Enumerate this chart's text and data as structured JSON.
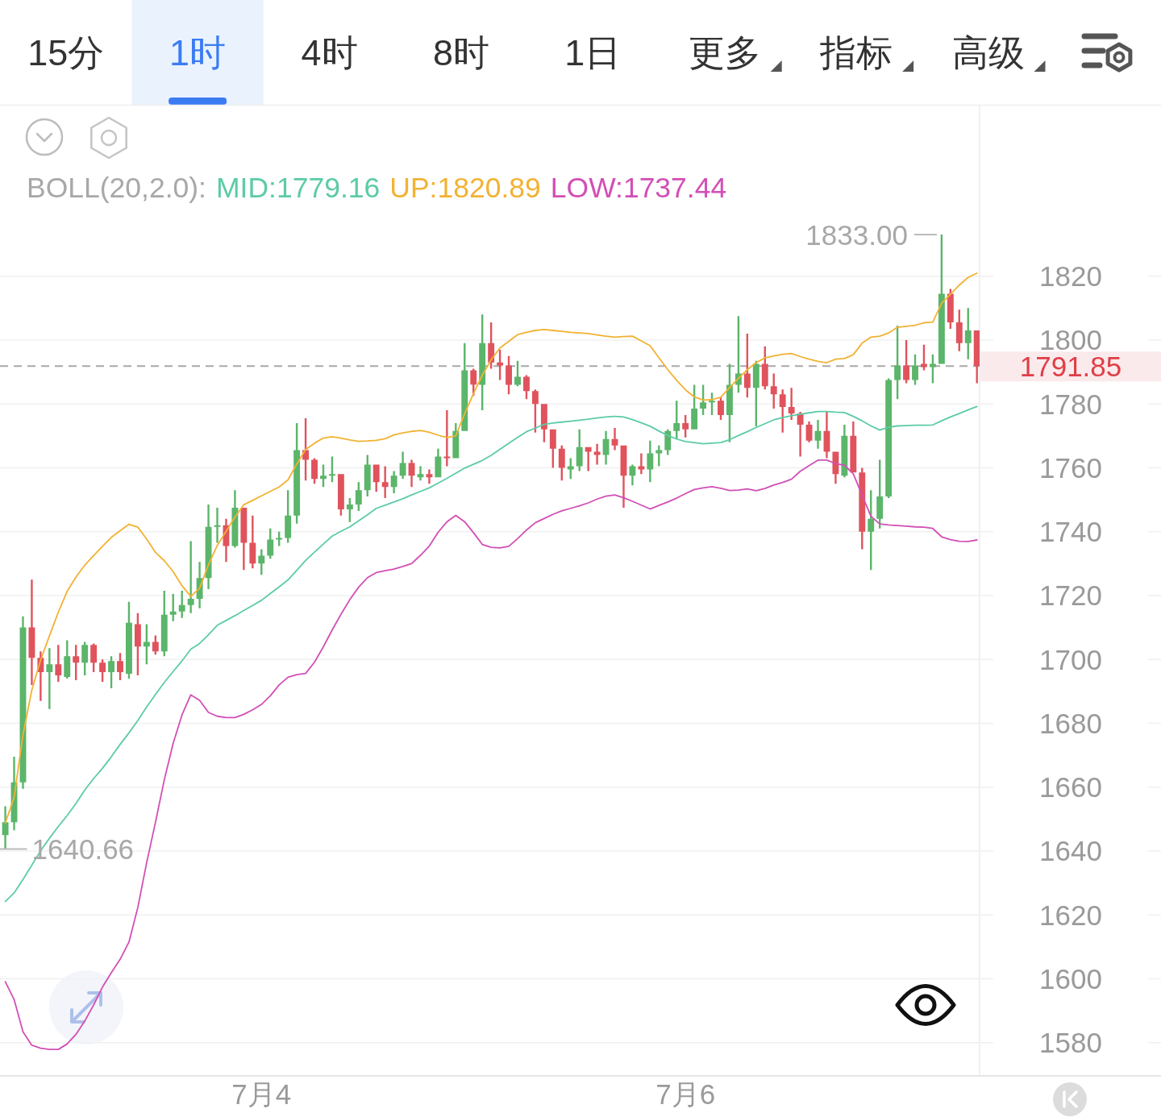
{
  "chart_data": [
    {
      "type": "other",
      "annotations": [
        "15分",
        "1时",
        "4时",
        "8时",
        "1日",
        "更多",
        "指标",
        "高级"
      ]
    },
    {
      "type": "candlestick",
      "legend_title": "BOLL(20,2.0):",
      "legend": "top left",
      "grid": "y",
      "ylim": [
        1569.6,
        1873.4
      ],
      "yticks": [
        1580,
        1600,
        1620,
        1640,
        1660,
        1680,
        1700,
        1720,
        1740,
        1760,
        1780,
        1800,
        1820
      ],
      "categories": [
        null,
        null,
        null,
        null,
        null,
        null,
        null,
        null,
        null,
        null,
        null,
        null,
        null,
        null,
        null,
        null,
        null,
        null,
        null,
        null,
        null,
        null,
        null,
        null,
        null,
        null,
        null,
        null,
        null,
        "7月4",
        null,
        null,
        null,
        null,
        null,
        null,
        null,
        null,
        null,
        null,
        null,
        null,
        null,
        null,
        null,
        null,
        null,
        null,
        null,
        null,
        null,
        null,
        null,
        null,
        null,
        null,
        null,
        null,
        null,
        null,
        null,
        null,
        null,
        null,
        null,
        null,
        null,
        null,
        null,
        null,
        null,
        null,
        null,
        null,
        null,
        null,
        null,
        "7月6",
        null,
        null,
        null,
        null,
        null,
        null,
        null,
        null,
        null,
        null,
        null,
        null,
        null,
        null,
        null,
        null,
        null,
        null,
        null,
        null,
        null,
        null,
        null,
        null,
        null,
        null,
        null,
        null,
        null,
        null,
        null,
        null,
        null
      ],
      "ohlc": [
        [
          1645,
          1654,
          1640.66,
          1649
        ],
        [
          1649,
          1669.5,
          1646.5,
          1661.5
        ],
        [
          1661.5,
          1713.5,
          1659.5,
          1710
        ],
        [
          1710,
          1725,
          1692,
          1700.5
        ],
        [
          1700.5,
          1702.5,
          1687,
          1696
        ],
        [
          1696,
          1703.5,
          1684.5,
          1698.5
        ],
        [
          1698.5,
          1704.5,
          1693,
          1695
        ],
        [
          1694.5,
          1706,
          1694,
          1701
        ],
        [
          1701,
          1704.5,
          1693.5,
          1699
        ],
        [
          1699,
          1705.5,
          1695,
          1704.5
        ],
        [
          1704.5,
          1705,
          1696,
          1699
        ],
        [
          1699,
          1700,
          1693,
          1696
        ],
        [
          1696,
          1701,
          1691,
          1699.5
        ],
        [
          1699.5,
          1702,
          1693.5,
          1696
        ],
        [
          1695.5,
          1718,
          1694,
          1711.5
        ],
        [
          1711,
          1714.5,
          1695,
          1704
        ],
        [
          1704,
          1711,
          1698.5,
          1705.5
        ],
        [
          1705.5,
          1707.5,
          1701.5,
          1702.5
        ],
        [
          1702.5,
          1721.5,
          1701,
          1714
        ],
        [
          1714,
          1720.5,
          1712,
          1715
        ],
        [
          1715,
          1721.5,
          1713,
          1717
        ],
        [
          1717,
          1737,
          1714.5,
          1719
        ],
        [
          1719,
          1730.5,
          1716,
          1725.5
        ],
        [
          1725.5,
          1748.5,
          1722,
          1741.5
        ],
        [
          1741.5,
          1747.5,
          1736.5,
          1742
        ],
        [
          1742,
          1744,
          1730.5,
          1735.5
        ],
        [
          1735.5,
          1753,
          1735,
          1747.5
        ],
        [
          1747.5,
          1747.5,
          1728,
          1736.5
        ],
        [
          1736.5,
          1745,
          1728.5,
          1730
        ],
        [
          1730,
          1734.5,
          1726.5,
          1732.5
        ],
        [
          1732.5,
          1741,
          1731.5,
          1737.5
        ],
        [
          1737.5,
          1740,
          1735.5,
          1738
        ],
        [
          1738,
          1753,
          1736.5,
          1745
        ],
        [
          1745,
          1774,
          1742.5,
          1765.5
        ],
        [
          1765.5,
          1775.5,
          1756,
          1762.5
        ],
        [
          1762.5,
          1763,
          1755,
          1756.5
        ],
        [
          1756.5,
          1761,
          1754,
          1757.5
        ],
        [
          1757.5,
          1763.5,
          1755.5,
          1758
        ],
        [
          1758,
          1758,
          1745,
          1747
        ],
        [
          1747,
          1750.5,
          1743,
          1748.5
        ],
        [
          1748.5,
          1755.5,
          1746.5,
          1753
        ],
        [
          1753,
          1764,
          1751,
          1761
        ],
        [
          1761,
          1761,
          1752.5,
          1755.5
        ],
        [
          1755.5,
          1760.5,
          1750.5,
          1754
        ],
        [
          1754,
          1759,
          1752,
          1757.5
        ],
        [
          1757.5,
          1765,
          1756.5,
          1761.5
        ],
        [
          1761.5,
          1762.5,
          1754,
          1757.5
        ],
        [
          1757,
          1760.5,
          1756,
          1758
        ],
        [
          1758,
          1759.5,
          1755,
          1757
        ],
        [
          1757,
          1766,
          1757,
          1763.5
        ],
        [
          1763.5,
          1778,
          1760.5,
          1763
        ],
        [
          1763,
          1774,
          1763,
          1771.5
        ],
        [
          1771.5,
          1799,
          1771.5,
          1790.5
        ],
        [
          1790.5,
          1791,
          1782.5,
          1786
        ],
        [
          1786,
          1808,
          1778,
          1799
        ],
        [
          1799,
          1805.5,
          1791,
          1793
        ],
        [
          1793,
          1797,
          1787.5,
          1792
        ],
        [
          1792,
          1795,
          1783,
          1786
        ],
        [
          1786,
          1793.5,
          1785.5,
          1788.5
        ],
        [
          1788.5,
          1789,
          1781.5,
          1784
        ],
        [
          1784,
          1784.5,
          1771,
          1780
        ],
        [
          1780,
          1780,
          1768,
          1772
        ],
        [
          1772,
          1772,
          1760,
          1766
        ],
        [
          1766,
          1767,
          1756,
          1760
        ],
        [
          1759.5,
          1763,
          1756.5,
          1760.5
        ],
        [
          1760.5,
          1772,
          1759,
          1766.5
        ],
        [
          1766.5,
          1766.5,
          1759,
          1765
        ],
        [
          1765,
          1767.5,
          1761,
          1764
        ],
        [
          1764,
          1771.5,
          1761,
          1769
        ],
        [
          1769,
          1772.5,
          1765.5,
          1767
        ],
        [
          1767,
          1767,
          1747.5,
          1757.5
        ],
        [
          1757.5,
          1761,
          1754.5,
          1760.5
        ],
        [
          1760.5,
          1764.5,
          1758,
          1759.5
        ],
        [
          1759.5,
          1768.5,
          1755.5,
          1764.5
        ],
        [
          1764.5,
          1767,
          1760.5,
          1765.5
        ],
        [
          1765.5,
          1772,
          1764,
          1771.5
        ],
        [
          1771.5,
          1781,
          1769,
          1774
        ],
        [
          1774,
          1776.5,
          1769.5,
          1772
        ],
        [
          1772,
          1786,
          1772,
          1778.5
        ],
        [
          1778.5,
          1786,
          1776.5,
          1780.5
        ],
        [
          1780.5,
          1783.5,
          1776.5,
          1781
        ],
        [
          1781,
          1782,
          1775,
          1776.5
        ],
        [
          1776.5,
          1792.5,
          1768,
          1786
        ],
        [
          1786,
          1807.5,
          1783.5,
          1789.5
        ],
        [
          1789.5,
          1802,
          1782,
          1785
        ],
        [
          1785,
          1793.5,
          1773,
          1792.5
        ],
        [
          1792.5,
          1798,
          1784.5,
          1785.5
        ],
        [
          1785.5,
          1789.5,
          1778.5,
          1783
        ],
        [
          1783,
          1784.5,
          1771,
          1779
        ],
        [
          1779,
          1785,
          1775,
          1777
        ],
        [
          1777,
          1777.5,
          1763.5,
          1773.5
        ],
        [
          1773.5,
          1774.5,
          1768,
          1768.5
        ],
        [
          1768.5,
          1775,
          1766,
          1771.5
        ],
        [
          1771.5,
          1777.5,
          1763,
          1765
        ],
        [
          1765,
          1765,
          1755,
          1758
        ],
        [
          1757.5,
          1773.5,
          1757,
          1770
        ],
        [
          1770,
          1774.5,
          1758.5,
          1758.5
        ],
        [
          1758.5,
          1760,
          1734.5,
          1740
        ],
        [
          1740,
          1753,
          1728,
          1744
        ],
        [
          1744,
          1762.5,
          1741,
          1751
        ],
        [
          1751,
          1788,
          1750.5,
          1787.5
        ],
        [
          1787.5,
          1804.5,
          1781.5,
          1792
        ],
        [
          1792,
          1800,
          1786.5,
          1787.5
        ],
        [
          1787.5,
          1795.5,
          1786,
          1792
        ],
        [
          1792.5,
          1798.5,
          1790.5,
          1791.5
        ],
        [
          1791.5,
          1795.5,
          1786.5,
          1792.5
        ],
        [
          1792.5,
          1833,
          1792.5,
          1814.5
        ],
        [
          1814.5,
          1816,
          1803.5,
          1805.5
        ],
        [
          1805.5,
          1809.5,
          1796.5,
          1799
        ],
        [
          1799,
          1810,
          1794,
          1803
        ],
        [
          1803,
          1803,
          1786.5,
          1791.85
        ]
      ],
      "colors": [
        "#5bb56a",
        "#5bb56a",
        "#5bb56a",
        "#e0535d",
        "#e0535d",
        "#5bb56a",
        "#e0535d",
        "#5bb56a",
        "#e0535d",
        "#5bb56a",
        "#e0535d",
        "#e0535d",
        "#5bb56a",
        "#e0535d",
        "#5bb56a",
        "#e0535d",
        "#5bb56a",
        "#e0535d",
        "#5bb56a",
        "#5bb56a",
        "#5bb56a",
        "#5bb56a",
        "#5bb56a",
        "#5bb56a",
        "#5bb56a",
        "#e0535d",
        "#5bb56a",
        "#e0535d",
        "#e0535d",
        "#5bb56a",
        "#5bb56a",
        "#5bb56a",
        "#5bb56a",
        "#5bb56a",
        "#e0535d",
        "#e0535d",
        "#5bb56a",
        "#5bb56a",
        "#e0535d",
        "#5bb56a",
        "#5bb56a",
        "#5bb56a",
        "#e0535d",
        "#e0535d",
        "#5bb56a",
        "#5bb56a",
        "#e0535d",
        "#5bb56a",
        "#e0535d",
        "#5bb56a",
        "#e0535d",
        "#5bb56a",
        "#5bb56a",
        "#e0535d",
        "#5bb56a",
        "#e0535d",
        "#e0535d",
        "#e0535d",
        "#5bb56a",
        "#e0535d",
        "#e0535d",
        "#e0535d",
        "#e0535d",
        "#e0535d",
        "#5bb56a",
        "#5bb56a",
        "#e0535d",
        "#e0535d",
        "#5bb56a",
        "#e0535d",
        "#e0535d",
        "#5bb56a",
        "#e0535d",
        "#5bb56a",
        "#5bb56a",
        "#5bb56a",
        "#5bb56a",
        "#e0535d",
        "#5bb56a",
        "#5bb56a",
        "#5bb56a",
        "#e0535d",
        "#5bb56a",
        "#5bb56a",
        "#e0535d",
        "#5bb56a",
        "#e0535d",
        "#e0535d",
        "#e0535d",
        "#e0535d",
        "#e0535d",
        "#e0535d",
        "#5bb56a",
        "#e0535d",
        "#e0535d",
        "#5bb56a",
        "#e0535d",
        "#e0535d",
        "#5bb56a",
        "#5bb56a",
        "#5bb56a",
        "#5bb56a",
        "#e0535d",
        "#5bb56a",
        "#e0535d",
        "#5bb56a",
        "#5bb56a",
        "#e0535d",
        "#e0535d",
        "#5bb56a",
        "#e0535d"
      ],
      "series": [
        {
          "name": "MID:1779.16",
          "type": "line",
          "color": "#5ccba8",
          "values": [
            1624.2,
            1626.9,
            1631.1,
            1635.6,
            1640.1,
            1644.0,
            1647.7,
            1651.1,
            1654.9,
            1659.1,
            1662.7,
            1665.9,
            1669.5,
            1673.4,
            1677.0,
            1680.9,
            1685.1,
            1689.0,
            1692.8,
            1696.2,
            1699.5,
            1703.2,
            1705.0,
            1707.7,
            1710.7,
            1712.2,
            1713.7,
            1715.3,
            1716.9,
            1718.5,
            1720.6,
            1722.7,
            1724.9,
            1727.9,
            1731.0,
            1733.6,
            1736.1,
            1738.6,
            1740.1,
            1741.5,
            1743.4,
            1745.3,
            1747.3,
            1748.3,
            1749.3,
            1750.3,
            1751.5,
            1752.6,
            1753.7,
            1755.2,
            1756.7,
            1758.3,
            1759.9,
            1761.1,
            1762.3,
            1763.9,
            1765.8,
            1767.7,
            1769.5,
            1771.3,
            1772.4,
            1773.6,
            1774.0,
            1774.3,
            1774.6,
            1774.9,
            1775.2,
            1775.6,
            1775.9,
            1776.1,
            1775.9,
            1775.1,
            1774.1,
            1773.0,
            1771.5,
            1770.1,
            1769.0,
            1768.2,
            1767.9,
            1767.5,
            1767.7,
            1767.9,
            1768.8,
            1770.1,
            1771.3,
            1772.6,
            1773.8,
            1775.0,
            1775.7,
            1776.3,
            1776.8,
            1777.2,
            1777.6,
            1777.6,
            1777.4,
            1777.3,
            1776.1,
            1774.7,
            1773.1,
            1771.8,
            1772.7,
            1773.1,
            1773.2,
            1773.3,
            1773.3,
            1773.4,
            1774.7,
            1775.9,
            1777.0,
            1778.1,
            1779.2
          ]
        },
        {
          "name": "UP:1820.89",
          "type": "line",
          "color": "#f2b233",
          "values": [
            1648.8,
            1656.8,
            1676.4,
            1690.4,
            1699.8,
            1707.4,
            1714.8,
            1721.3,
            1725.8,
            1729.5,
            1732.5,
            1735.4,
            1738.2,
            1740.3,
            1742.3,
            1741.4,
            1737.7,
            1733.5,
            1730.9,
            1727.5,
            1723.1,
            1719.7,
            1722.3,
            1729.6,
            1735.7,
            1740.1,
            1744.6,
            1748.4,
            1749.8,
            1751.2,
            1752.6,
            1754.0,
            1756.2,
            1761.2,
            1765.7,
            1767.7,
            1769.3,
            1769.7,
            1769.3,
            1768.7,
            1768.3,
            1768.4,
            1768.6,
            1769.1,
            1770.3,
            1770.9,
            1771.4,
            1771.7,
            1771.1,
            1770.2,
            1769.5,
            1770.0,
            1776.9,
            1783.2,
            1789.0,
            1793.8,
            1797.5,
            1799.6,
            1801.7,
            1802.4,
            1803.0,
            1803.3,
            1803.0,
            1802.7,
            1802.4,
            1802.2,
            1802.0,
            1801.6,
            1801.2,
            1800.9,
            1801.1,
            1801.2,
            1799.7,
            1798.2,
            1794.4,
            1790.7,
            1787.4,
            1784.4,
            1782.2,
            1781.2,
            1781.3,
            1782.1,
            1785.1,
            1788.0,
            1790.7,
            1792.9,
            1794.4,
            1795.0,
            1795.5,
            1795.8,
            1794.8,
            1794.0,
            1793.3,
            1792.9,
            1794.0,
            1794.2,
            1795.4,
            1799.0,
            1800.9,
            1801.2,
            1802.2,
            1804.0,
            1804.3,
            1804.6,
            1805.4,
            1805.6,
            1811.5,
            1814.3,
            1817.2,
            1819.6,
            1820.9
          ]
        },
        {
          "name": "LOW:1737.44",
          "type": "line",
          "color": "#d24fb6",
          "values": [
            1599.1,
            1593.5,
            1583.4,
            1579.2,
            1578.3,
            1577.9,
            1577.9,
            1579.6,
            1582.6,
            1586.8,
            1591.8,
            1597.4,
            1601.9,
            1606.1,
            1611.5,
            1622.3,
            1636.3,
            1649.0,
            1662.3,
            1673.7,
            1682.6,
            1688.9,
            1687.2,
            1683.4,
            1682.2,
            1681.8,
            1681.8,
            1682.8,
            1684.2,
            1685.9,
            1688.6,
            1692.0,
            1694.4,
            1695.2,
            1695.6,
            1699.1,
            1703.9,
            1709.2,
            1714.1,
            1718.7,
            1722.6,
            1725.6,
            1727.2,
            1727.8,
            1728.3,
            1729.1,
            1730.0,
            1732.6,
            1735.5,
            1739.8,
            1743.1,
            1745.1,
            1743.1,
            1739.7,
            1736.0,
            1735.1,
            1734.9,
            1735.4,
            1737.8,
            1740.5,
            1742.8,
            1744.1,
            1745.4,
            1746.5,
            1747.3,
            1748.1,
            1749.0,
            1750.2,
            1751.1,
            1751.5,
            1750.6,
            1749.5,
            1748.3,
            1747.1,
            1748.2,
            1749.3,
            1750.5,
            1751.9,
            1753.2,
            1753.7,
            1754.1,
            1753.6,
            1752.9,
            1753.0,
            1753.4,
            1752.8,
            1753.5,
            1754.6,
            1755.4,
            1756.4,
            1758.9,
            1760.7,
            1762.4,
            1762.4,
            1761.3,
            1760.8,
            1758.1,
            1751.4,
            1744.8,
            1742.4,
            1742.1,
            1741.9,
            1741.7,
            1741.5,
            1741.4,
            1741.0,
            1738.4,
            1737.5,
            1737.0,
            1736.9,
            1737.4
          ]
        }
      ],
      "ref_lines": [
        {
          "axis": "y",
          "value": 1791.85,
          "color": "#a9a9a9",
          "line_style": "dashed"
        }
      ],
      "annotations": [
        "1833.00",
        "1640.66",
        "1791.85"
      ]
    }
  ]
}
